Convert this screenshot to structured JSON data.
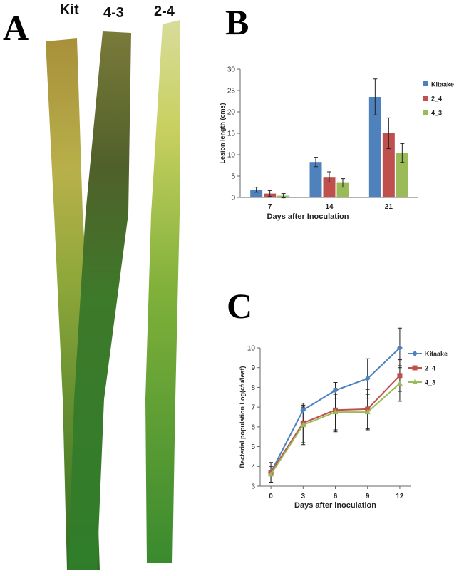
{
  "panels": {
    "a": "A",
    "b": "B",
    "c": "C"
  },
  "leaves": [
    "Kit",
    "4-3",
    "2-4"
  ],
  "chart_data": [
    {
      "type": "bar",
      "ylabel": "Lesion length (cms)",
      "xlabel": "Days after Inoculation",
      "categories": [
        "7",
        "14",
        "21"
      ],
      "series": [
        {
          "name": "Kitaake",
          "color": "#4f81bd",
          "values": [
            1.8,
            8.3,
            23.5
          ],
          "errors": [
            0.6,
            1.1,
            4.2
          ]
        },
        {
          "name": "2_4",
          "color": "#c0504d",
          "values": [
            0.9,
            4.8,
            15.0
          ],
          "errors": [
            0.7,
            1.2,
            3.6
          ]
        },
        {
          "name": "4_3",
          "color": "#9bbb59",
          "values": [
            0.4,
            3.4,
            10.4
          ],
          "errors": [
            0.5,
            1.0,
            2.2
          ]
        }
      ],
      "ylim": [
        0,
        30
      ],
      "yticks": [
        0,
        5,
        10,
        15,
        20,
        25,
        30
      ]
    },
    {
      "type": "line",
      "ylabel": "Bacterial population Log(cfu/leaf)",
      "xlabel": "Days after inoculation",
      "x": [
        0,
        3,
        6,
        9,
        12
      ],
      "series": [
        {
          "name": "Kitaake",
          "color": "#4f81bd",
          "marker": "diamond",
          "values": [
            3.7,
            6.85,
            7.85,
            8.45,
            10.0
          ],
          "errors": [
            0.1,
            0.15,
            0.4,
            1.0,
            1.0
          ]
        },
        {
          "name": "2_4",
          "color": "#c0504d",
          "marker": "square",
          "values": [
            3.7,
            6.2,
            6.85,
            6.9,
            8.6
          ],
          "errors": [
            0.5,
            1.0,
            1.1,
            1.0,
            0.8
          ]
        },
        {
          "name": "4_3",
          "color": "#9bbb59",
          "marker": "triangle",
          "values": [
            3.6,
            6.1,
            6.75,
            6.75,
            8.2
          ],
          "errors": [
            0.4,
            1.0,
            0.9,
            0.9,
            0.9
          ]
        }
      ],
      "xlim": [
        -1,
        13
      ],
      "xticks": [
        0,
        3,
        6,
        9,
        12
      ],
      "ylim": [
        3,
        10
      ],
      "yticks": [
        3,
        4,
        5,
        6,
        7,
        8,
        9,
        10
      ]
    }
  ]
}
